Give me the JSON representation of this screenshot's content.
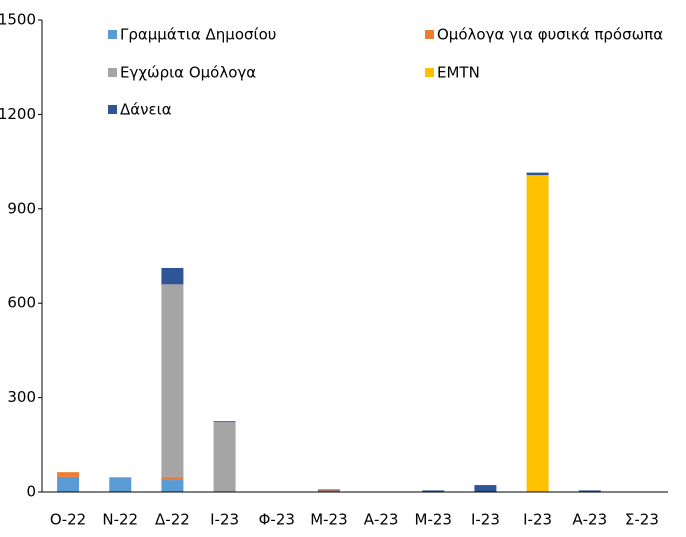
{
  "chart_data": {
    "type": "stacked-bar",
    "categories": [
      "Ο-22",
      "Ν-22",
      "Δ-22",
      "Ι-23",
      "Φ-23",
      "Μ-23",
      "Α-23",
      "Μ-23",
      "Ι-23",
      "Ι-23",
      "Α-23",
      "Σ-23"
    ],
    "series": [
      {
        "name": "Γραμμάτια Δημοσίου",
        "color": "#5b9bd5",
        "values": [
          48,
          44,
          38,
          0,
          0,
          0,
          0,
          0,
          0,
          0,
          0,
          0
        ]
      },
      {
        "name": "Ομόλογα για φυσικά πρόσωπα",
        "color": "#ed7d31",
        "values": [
          15,
          0,
          10,
          0,
          0,
          5,
          0,
          0,
          0,
          0,
          0,
          0
        ]
      },
      {
        "name": "Εγχώρια Ομόλογα",
        "color": "#a5a5a5",
        "values": [
          0,
          0,
          612,
          222,
          0,
          0,
          0,
          0,
          0,
          0,
          0,
          0
        ]
      },
      {
        "name": "EMTN",
        "color": "#ffc000",
        "values": [
          0,
          0,
          0,
          0,
          0,
          0,
          0,
          0,
          0,
          1007,
          0,
          0
        ]
      },
      {
        "name": "Δάνεια",
        "color": "#2f5597",
        "values": [
          0,
          2,
          52,
          3,
          0,
          3,
          0,
          5,
          22,
          8,
          5,
          0
        ]
      }
    ],
    "ylim": [
      0,
      1500
    ],
    "yticks": [
      0,
      300,
      600,
      900,
      1200,
      1500
    ]
  }
}
